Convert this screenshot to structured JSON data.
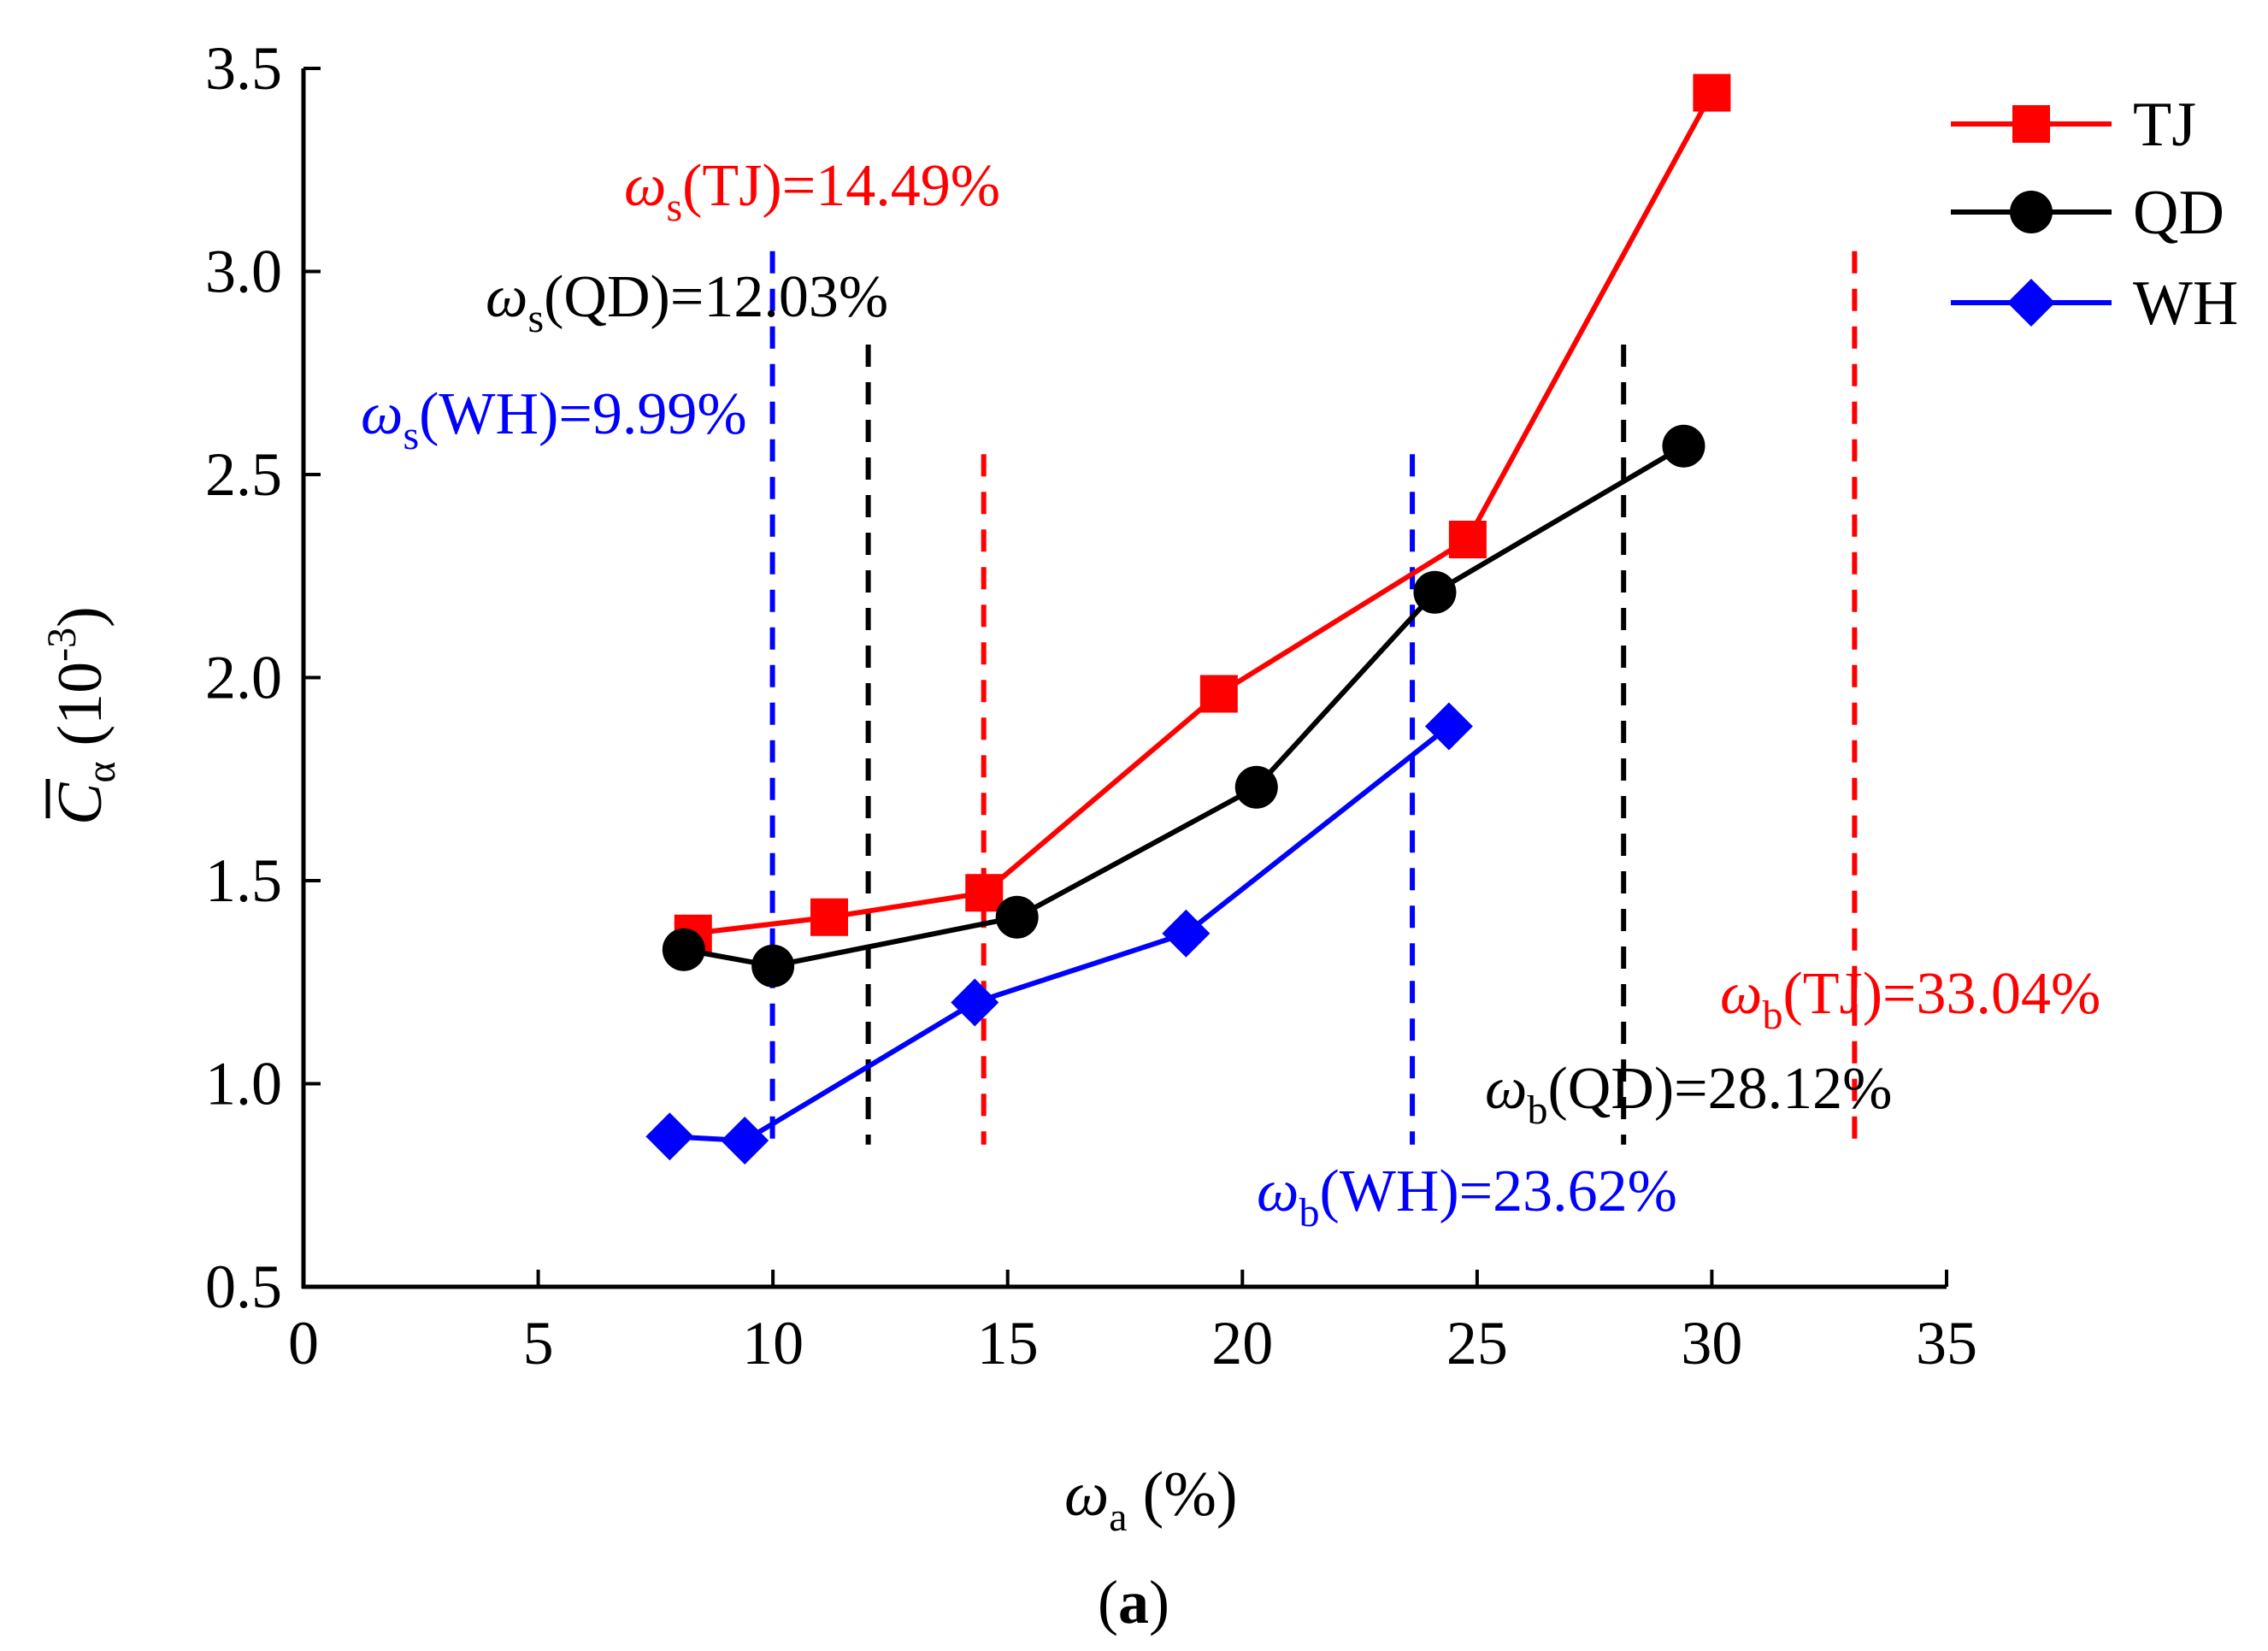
{
  "chart_data": {
    "type": "line",
    "title": "",
    "xlabel": {
      "symbol": "ω",
      "sub": "a",
      "unit": "(%)"
    },
    "ylabel": {
      "symbol": "C",
      "sub": "α",
      "unit_pre": "(10",
      "unit_exp": "-3",
      "unit_post": ")"
    },
    "xlim": [
      0,
      35
    ],
    "ylim": [
      0.5,
      3.5
    ],
    "xticks": [
      0,
      5,
      10,
      15,
      20,
      25,
      30,
      35
    ],
    "xtick_labels": [
      "0",
      "5",
      "10",
      "15",
      "20",
      "25",
      "30",
      "35"
    ],
    "yticks": [
      0.5,
      1.0,
      1.5,
      2.0,
      2.5,
      3.0,
      3.5
    ],
    "ytick_labels": [
      "0.5",
      "1.0",
      "1.5",
      "2.0",
      "2.5",
      "3.0",
      "3.5"
    ],
    "grid": false,
    "legend_position": "top-right",
    "series": [
      {
        "name": "TJ",
        "color": "#ff0000",
        "marker": "square",
        "x": [
          8.3,
          11.2,
          14.5,
          19.5,
          24.8,
          30.0
        ],
        "y": [
          1.37,
          1.41,
          1.47,
          1.96,
          2.34,
          3.44
        ]
      },
      {
        "name": "QD",
        "color": "#000000",
        "marker": "circle",
        "x": [
          8.1,
          10.0,
          15.2,
          20.3,
          24.1,
          29.4
        ],
        "y": [
          1.33,
          1.29,
          1.41,
          1.73,
          2.21,
          2.57
        ]
      },
      {
        "name": "WH",
        "color": "#0000ff",
        "marker": "diamond",
        "x": [
          7.8,
          9.4,
          14.3,
          18.8,
          24.4
        ],
        "y": [
          0.87,
          0.86,
          1.2,
          1.37,
          1.88
        ]
      }
    ],
    "thresholds": [
      {
        "series": "TJ",
        "x": 14.49,
        "y_top": 2.55,
        "color": "#ff0000",
        "sym": "ω",
        "sub": "s",
        "text": "(TJ)=14.49%"
      },
      {
        "series": "QD",
        "x": 12.03,
        "y_top": 2.82,
        "color": "#000000",
        "sym": "ω",
        "sub": "s",
        "text": "(QD)=12.03%"
      },
      {
        "series": "WH",
        "x": 9.99,
        "y_top": 3.05,
        "color": "#0000ff",
        "sym": "ω",
        "sub": "s",
        "text": "(WH)=9.99%"
      },
      {
        "series": "TJ",
        "x": 33.04,
        "y_top": 3.05,
        "color": "#ff0000",
        "sym": "ω",
        "sub": "b",
        "text": "(TJ)=33.04%"
      },
      {
        "series": "QD",
        "x": 28.12,
        "y_top": 2.82,
        "color": "#000000",
        "sym": "ω",
        "sub": "b",
        "text": "(QD)=28.12%"
      },
      {
        "series": "WH",
        "x": 23.62,
        "y_top": 2.55,
        "color": "#0000ff",
        "sym": "ω",
        "sub": "b",
        "text": "(WH)=23.62%"
      }
    ]
  },
  "caption": {
    "open": "(",
    "letter": "a",
    "close": ")"
  }
}
